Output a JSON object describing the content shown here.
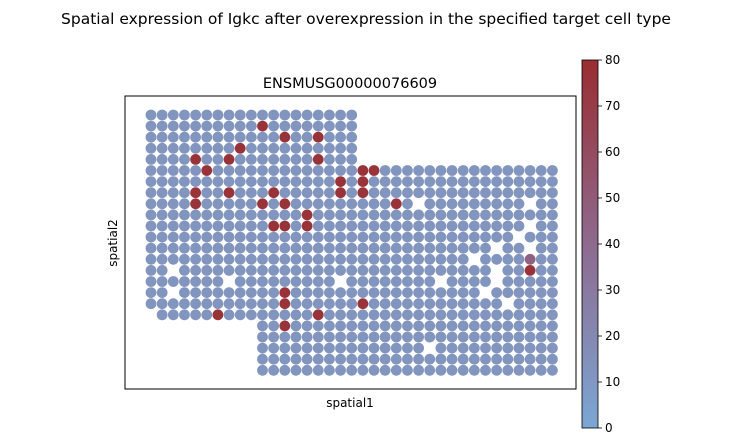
{
  "chart_data": {
    "type": "scatter",
    "suptitle": "Spatial expression of Igkc after overexpression in the specified target cell type",
    "title": "ENSMUSG00000076609",
    "xlabel": "spatial1",
    "ylabel": "spatial2",
    "grid": false,
    "colorbar": {
      "range": [
        0,
        80
      ],
      "ticks": [
        "0",
        "10",
        "20",
        "30",
        "40",
        "50",
        "60",
        "70",
        "80"
      ],
      "colors": {
        "low": "#7ba7d4",
        "mid": "#8e6a8e",
        "high": "#9a2d31"
      }
    },
    "background_value": 12,
    "left_block": {
      "columns": [
        0,
        18
      ],
      "rows": [
        0,
        18
      ],
      "last_row_columns": [
        1,
        18
      ]
    },
    "right_block": {
      "columns": [
        10,
        36
      ],
      "rows": [
        5,
        23
      ]
    },
    "holes": [
      [
        24,
        8
      ],
      [
        34,
        8
      ],
      [
        34,
        10
      ],
      [
        33,
        11
      ],
      [
        31,
        12
      ],
      [
        34,
        12
      ],
      [
        29,
        13
      ],
      [
        2,
        14
      ],
      [
        31,
        14
      ],
      [
        7,
        15
      ],
      [
        17,
        15
      ],
      [
        26,
        15
      ],
      [
        31,
        15
      ],
      [
        2,
        16
      ],
      [
        30,
        16
      ],
      [
        32,
        17
      ],
      [
        25,
        21
      ]
    ],
    "hot_spots": [
      {
        "x": 24,
        "y": 0,
        "value": 76
      },
      {
        "x": 25,
        "y": 0,
        "value": 76
      },
      {
        "x": 26,
        "y": 0,
        "value": 76
      },
      {
        "x": 10,
        "y": 1,
        "value": 76
      },
      {
        "x": 24,
        "y": 1,
        "value": 76
      },
      {
        "x": 25,
        "y": 1,
        "value": 76
      },
      {
        "x": 26,
        "y": 1,
        "value": 76
      },
      {
        "x": 12,
        "y": 2,
        "value": 76
      },
      {
        "x": 15,
        "y": 2,
        "value": 76
      },
      {
        "x": 8,
        "y": 3,
        "value": 76
      },
      {
        "x": 25,
        "y": 3,
        "value": 76
      },
      {
        "x": 4,
        "y": 4,
        "value": 76
      },
      {
        "x": 7,
        "y": 4,
        "value": 76
      },
      {
        "x": 15,
        "y": 4,
        "value": 76
      },
      {
        "x": 5,
        "y": 5,
        "value": 76
      },
      {
        "x": 19,
        "y": 5,
        "value": 76
      },
      {
        "x": 20,
        "y": 5,
        "value": 76
      },
      {
        "x": 17,
        "y": 6,
        "value": 76
      },
      {
        "x": 19,
        "y": 6,
        "value": 76
      },
      {
        "x": 4,
        "y": 7,
        "value": 76
      },
      {
        "x": 7,
        "y": 7,
        "value": 76
      },
      {
        "x": 11,
        "y": 7,
        "value": 76
      },
      {
        "x": 17,
        "y": 7,
        "value": 76
      },
      {
        "x": 19,
        "y": 7,
        "value": 76
      },
      {
        "x": 4,
        "y": 8,
        "value": 76
      },
      {
        "x": 10,
        "y": 8,
        "value": 76
      },
      {
        "x": 12,
        "y": 8,
        "value": 76
      },
      {
        "x": 22,
        "y": 8,
        "value": 76
      },
      {
        "x": 14,
        "y": 9,
        "value": 76
      },
      {
        "x": 11,
        "y": 10,
        "value": 76
      },
      {
        "x": 12,
        "y": 10,
        "value": 76
      },
      {
        "x": 14,
        "y": 10,
        "value": 76
      },
      {
        "x": 34,
        "y": 13,
        "value": 45
      },
      {
        "x": 34,
        "y": 14,
        "value": 76
      },
      {
        "x": 12,
        "y": 16,
        "value": 76
      },
      {
        "x": 12,
        "y": 17,
        "value": 76
      },
      {
        "x": 19,
        "y": 17,
        "value": 76
      },
      {
        "x": 0,
        "y": 18,
        "value": 76
      },
      {
        "x": 6,
        "y": 18,
        "value": 76
      },
      {
        "x": 15,
        "y": 18,
        "value": 76
      },
      {
        "x": 12,
        "y": 19,
        "value": 76
      }
    ]
  }
}
